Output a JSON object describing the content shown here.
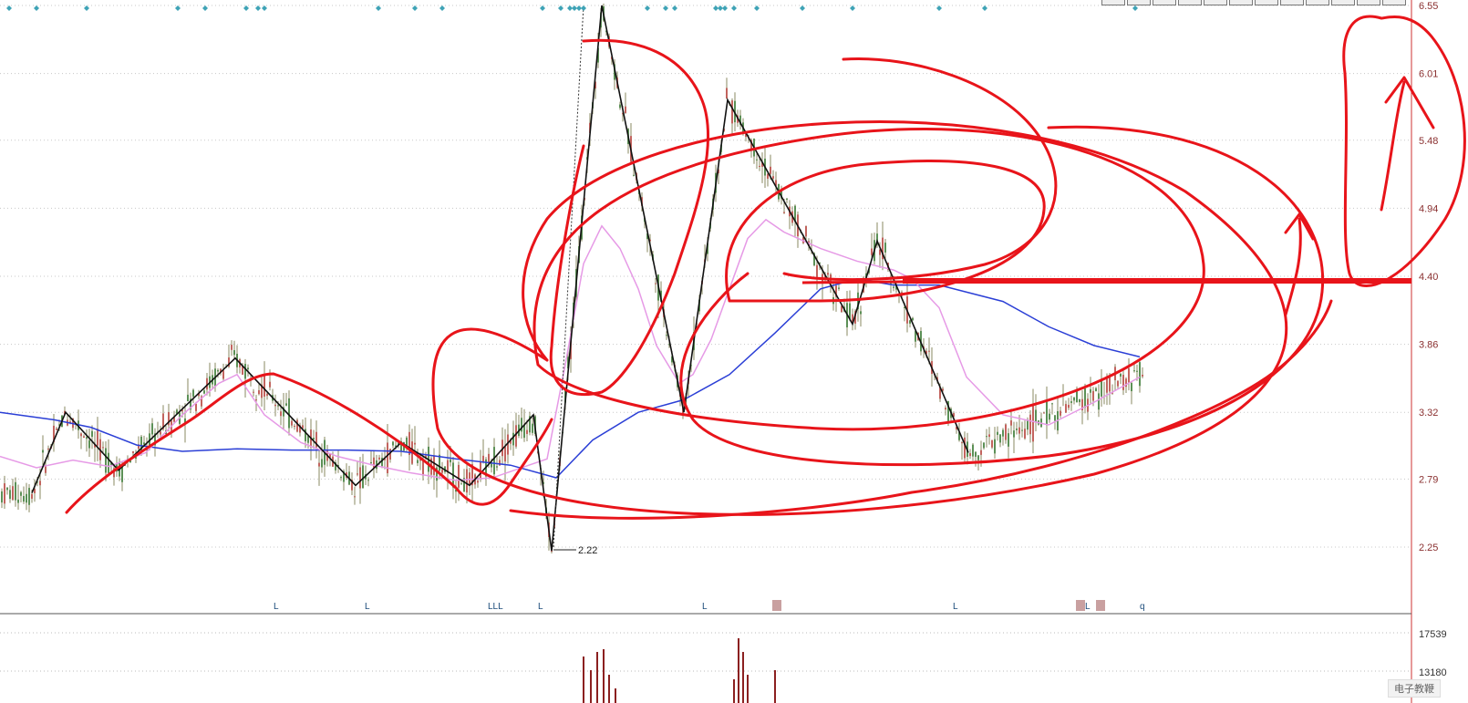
{
  "watermark": "电子教鞭",
  "chart_data": {
    "type": "candlestick",
    "title": "",
    "y_axis": {
      "position": "right",
      "ticks": [
        6.55,
        6.01,
        5.48,
        4.94,
        4.4,
        3.86,
        3.32,
        2.79,
        2.25
      ]
    },
    "price_low_label": "2.22",
    "volume_axis": {
      "ticks": [
        17539,
        13180
      ]
    },
    "event_markers": [
      "L",
      "L",
      "LLL",
      "L",
      "L",
      "L",
      "L",
      "q"
    ],
    "moving_averages": [
      {
        "color": "#2b3fd6",
        "points": [
          [
            0,
            3.32
          ],
          [
            60,
            3.26
          ],
          [
            100,
            3.2
          ],
          [
            150,
            3.06
          ],
          [
            200,
            3.01
          ],
          [
            260,
            3.03
          ],
          [
            320,
            3.02
          ],
          [
            380,
            3.02
          ],
          [
            440,
            3.01
          ],
          [
            500,
            2.95
          ],
          [
            560,
            2.9
          ],
          [
            610,
            2.8
          ],
          [
            650,
            3.1
          ],
          [
            700,
            3.32
          ],
          [
            750,
            3.42
          ],
          [
            800,
            3.62
          ],
          [
            850,
            3.95
          ],
          [
            900,
            4.3
          ],
          [
            940,
            4.38
          ],
          [
            980,
            4.33
          ],
          [
            1030,
            4.33
          ],
          [
            1100,
            4.2
          ],
          [
            1150,
            4.0
          ],
          [
            1200,
            3.85
          ],
          [
            1250,
            3.76
          ]
        ]
      },
      {
        "color": "#e69ae6",
        "points": [
          [
            0,
            2.97
          ],
          [
            40,
            2.88
          ],
          [
            80,
            2.94
          ],
          [
            120,
            2.89
          ],
          [
            160,
            3.0
          ],
          [
            200,
            3.3
          ],
          [
            240,
            3.55
          ],
          [
            260,
            3.62
          ],
          [
            290,
            3.3
          ],
          [
            330,
            3.08
          ],
          [
            370,
            2.97
          ],
          [
            410,
            2.9
          ],
          [
            450,
            2.84
          ],
          [
            500,
            2.78
          ],
          [
            540,
            2.8
          ],
          [
            580,
            2.9
          ],
          [
            600,
            2.95
          ],
          [
            620,
            3.7
          ],
          [
            640,
            4.5
          ],
          [
            660,
            4.8
          ],
          [
            680,
            4.62
          ],
          [
            700,
            4.3
          ],
          [
            720,
            3.85
          ],
          [
            745,
            3.55
          ],
          [
            760,
            3.62
          ],
          [
            780,
            3.9
          ],
          [
            800,
            4.3
          ],
          [
            820,
            4.7
          ],
          [
            840,
            4.85
          ],
          [
            860,
            4.75
          ],
          [
            900,
            4.62
          ],
          [
            940,
            4.52
          ],
          [
            980,
            4.45
          ],
          [
            1000,
            4.38
          ],
          [
            1030,
            4.15
          ],
          [
            1060,
            3.6
          ],
          [
            1100,
            3.3
          ],
          [
            1150,
            3.22
          ],
          [
            1200,
            3.4
          ],
          [
            1250,
            3.6
          ]
        ]
      }
    ],
    "zigzag": [
      [
        35,
        2.68
      ],
      [
        72,
        3.32
      ],
      [
        130,
        2.86
      ],
      [
        258,
        3.75
      ],
      [
        390,
        2.74
      ],
      [
        440,
        3.08
      ],
      [
        515,
        2.74
      ],
      [
        585,
        3.3
      ],
      [
        605,
        2.22
      ],
      [
        660,
        6.55
      ],
      [
        750,
        3.32
      ],
      [
        798,
        5.8
      ],
      [
        935,
        4.02
      ],
      [
        962,
        4.68
      ],
      [
        1062,
        3.0
      ]
    ],
    "annotation_strokes_color": "#e8141a",
    "horizontal_line_value": 4.38
  }
}
